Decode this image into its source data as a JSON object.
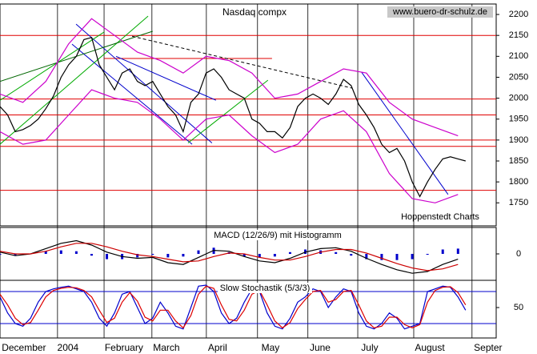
{
  "chart_data": [
    {
      "type": "line",
      "title": "Nasdaq compx",
      "source": "www.buero-dr-schulz.de",
      "credit": "Hoppenstedt Charts",
      "xlim": [
        0,
        195
      ],
      "ylim": [
        1695,
        2225
      ],
      "yticks": [
        1750,
        1800,
        1850,
        1900,
        1950,
        2000,
        2050,
        2100,
        2150,
        2200
      ],
      "series": [
        {
          "name": "Close",
          "color": "#000000",
          "x": [
            0,
            3,
            6,
            9,
            12,
            15,
            18,
            21,
            24,
            27,
            30,
            33,
            36,
            39,
            42,
            45,
            48,
            51,
            54,
            57,
            60,
            63,
            66,
            69,
            72,
            75,
            78,
            81,
            84,
            87,
            90,
            93,
            96,
            99,
            102,
            105,
            108,
            111,
            114,
            117,
            120,
            123,
            126,
            129,
            132,
            135,
            138,
            141,
            144,
            147,
            150,
            153,
            156,
            159,
            162,
            165,
            168,
            171,
            174,
            177,
            180,
            183
          ],
          "values": [
            1980,
            1960,
            1920,
            1925,
            1935,
            1950,
            1975,
            2005,
            2050,
            2080,
            2100,
            2140,
            2145,
            2080,
            2050,
            2020,
            2060,
            2070,
            2040,
            2030,
            2040,
            2010,
            1980,
            1960,
            1920,
            1990,
            2010,
            2060,
            2070,
            2050,
            2020,
            2010,
            2000,
            1950,
            1940,
            1920,
            1920,
            1905,
            1930,
            1980,
            2000,
            2010,
            2000,
            1985,
            2010,
            2045,
            2030,
            1985,
            1960,
            1930,
            1890,
            1870,
            1880,
            1850,
            1800,
            1765,
            1800,
            1830,
            1855,
            1860,
            1855,
            1850
          ]
        },
        {
          "name": "Upper band",
          "color": "#cc00cc",
          "x": [
            0,
            9,
            18,
            27,
            36,
            45,
            54,
            63,
            72,
            81,
            90,
            99,
            108,
            117,
            126,
            135,
            144,
            153,
            162,
            171,
            180
          ],
          "values": [
            2010,
            1990,
            2040,
            2130,
            2190,
            2150,
            2110,
            2090,
            2060,
            2100,
            2090,
            2060,
            2000,
            2010,
            2040,
            2070,
            2060,
            1990,
            1950,
            1930,
            1910
          ]
        },
        {
          "name": "Lower band",
          "color": "#cc00cc",
          "x": [
            0,
            9,
            18,
            27,
            36,
            45,
            54,
            63,
            72,
            81,
            90,
            99,
            108,
            117,
            126,
            135,
            144,
            153,
            162,
            171,
            180
          ],
          "values": [
            1920,
            1890,
            1900,
            1960,
            2020,
            2000,
            1990,
            1950,
            1900,
            1950,
            1960,
            1910,
            1870,
            1890,
            1950,
            1970,
            1920,
            1820,
            1760,
            1750,
            1770
          ]
        }
      ],
      "hlines": [
        {
          "value": 2150,
          "color": "#e00000"
        },
        {
          "value": 2095,
          "color": "#e00000",
          "x": [
            40.9,
            106.9
          ]
        },
        {
          "value": 1998,
          "color": "#e00000"
        },
        {
          "value": 1960,
          "color": "#e00000"
        },
        {
          "value": 1900,
          "color": "#e00000"
        },
        {
          "value": 1885,
          "color": "#e00000"
        },
        {
          "value": 1780,
          "color": "#e00000"
        }
      ],
      "trend_lines": [
        {
          "color": "#0000cc",
          "x": [
            29.9,
            83.3
          ],
          "y": [
            2177,
            1893
          ]
        },
        {
          "color": "#0000cc",
          "x": [
            28.3,
            75.5
          ],
          "y": [
            2129,
            1890
          ]
        },
        {
          "color": "#0000cc",
          "x": [
            45.6,
            84.9
          ],
          "y": [
            2100,
            1995
          ]
        },
        {
          "color": "#0000cc",
          "x": [
            142.1,
            176.1
          ],
          "y": [
            2062,
            1770
          ]
        },
        {
          "color": "#00aa00",
          "x": [
            0,
            58.2
          ],
          "y": [
            1890,
            2196
          ]
        },
        {
          "color": "#00aa00",
          "x": [
            0,
            40.9
          ],
          "y": [
            1995,
            2158
          ]
        },
        {
          "color": "#006600",
          "x": [
            0,
            60
          ],
          "y": [
            2040,
            2160
          ]
        },
        {
          "color": "#00aa00",
          "x": [
            73.9,
            105.3
          ],
          "y": [
            1893,
            2043
          ]
        },
        {
          "color": "#000000",
          "x": [
            51.9,
            138.4
          ],
          "y": [
            2148,
            2024
          ],
          "dash": true
        }
      ]
    },
    {
      "type": "macd",
      "title": "MACD (12/26/9) mit Histogramm",
      "xlim": [
        0,
        195
      ],
      "ylim": [
        -30,
        30
      ],
      "yticks": [
        0
      ],
      "series": [
        {
          "name": "Histogram",
          "color": "#0000cc",
          "kind": "bar",
          "x": [
            0,
            6,
            12,
            18,
            24,
            30,
            36,
            42,
            48,
            54,
            60,
            66,
            72,
            78,
            84,
            90,
            96,
            102,
            108,
            114,
            120,
            126,
            132,
            138,
            144,
            150,
            156,
            162,
            168,
            174,
            180
          ],
          "values": [
            -1,
            -2,
            0,
            3,
            4,
            3,
            -2,
            -6,
            -6,
            -4,
            -1,
            -4,
            -3,
            4,
            7,
            2,
            -3,
            -4,
            -3,
            2,
            5,
            4,
            2,
            -2,
            -6,
            -7,
            -7,
            -6,
            -1,
            5,
            6
          ]
        },
        {
          "name": "MACD",
          "color": "#000000",
          "x": [
            0,
            6,
            12,
            18,
            24,
            30,
            36,
            42,
            48,
            54,
            60,
            66,
            72,
            78,
            84,
            90,
            96,
            102,
            108,
            114,
            120,
            126,
            132,
            138,
            144,
            150,
            156,
            162,
            168,
            174,
            180
          ],
          "values": [
            2,
            -2,
            0,
            6,
            12,
            15,
            10,
            2,
            -3,
            -5,
            -4,
            -10,
            -12,
            -4,
            4,
            3,
            -3,
            -8,
            -10,
            -5,
            2,
            6,
            7,
            3,
            -5,
            -12,
            -18,
            -22,
            -20,
            -12,
            -6
          ]
        },
        {
          "name": "Signal",
          "color": "#cc0000",
          "x": [
            0,
            6,
            12,
            18,
            24,
            30,
            36,
            42,
            48,
            54,
            60,
            66,
            72,
            78,
            84,
            90,
            96,
            102,
            108,
            114,
            120,
            126,
            132,
            138,
            144,
            150,
            156,
            162,
            168,
            174,
            180
          ],
          "values": [
            3,
            0,
            0,
            3,
            8,
            12,
            12,
            8,
            3,
            -1,
            -3,
            -6,
            -9,
            -8,
            -3,
            1,
            0,
            -4,
            -7,
            -7,
            -3,
            2,
            5,
            5,
            1,
            -5,
            -11,
            -16,
            -19,
            -17,
            -12
          ]
        }
      ]
    },
    {
      "type": "line",
      "title": "Slow Stochastik (5/3/3)",
      "xlim": [
        0,
        195
      ],
      "ylim": [
        -7,
        101
      ],
      "yticks": [
        50
      ],
      "hlines": [
        {
          "value": 80,
          "color": "#0000cc"
        },
        {
          "value": 20,
          "color": "#0000cc"
        }
      ],
      "series": [
        {
          "name": "%K",
          "color": "#0000cc",
          "x": [
            0,
            3,
            6,
            9,
            12,
            15,
            18,
            21,
            24,
            27,
            30,
            33,
            36,
            39,
            42,
            45,
            48,
            51,
            54,
            57,
            60,
            63,
            66,
            69,
            72,
            75,
            78,
            81,
            84,
            87,
            90,
            93,
            96,
            99,
            102,
            105,
            108,
            111,
            114,
            117,
            120,
            123,
            126,
            129,
            132,
            135,
            138,
            141,
            144,
            147,
            150,
            153,
            156,
            159,
            162,
            165,
            168,
            171,
            174,
            177,
            180,
            183
          ],
          "values": [
            70,
            40,
            20,
            15,
            30,
            60,
            80,
            85,
            88,
            90,
            85,
            80,
            60,
            30,
            15,
            40,
            75,
            80,
            50,
            20,
            30,
            60,
            40,
            15,
            10,
            50,
            90,
            92,
            80,
            40,
            20,
            30,
            60,
            85,
            80,
            40,
            15,
            10,
            30,
            60,
            70,
            85,
            80,
            50,
            70,
            85,
            80,
            40,
            15,
            10,
            20,
            40,
            30,
            10,
            15,
            20,
            80,
            85,
            90,
            88,
            70,
            45
          ]
        },
        {
          "name": "%D",
          "color": "#dd0000",
          "x": [
            0,
            3,
            6,
            9,
            12,
            15,
            18,
            21,
            24,
            27,
            30,
            33,
            36,
            39,
            42,
            45,
            48,
            51,
            54,
            57,
            60,
            63,
            66,
            69,
            72,
            75,
            78,
            81,
            84,
            87,
            90,
            93,
            96,
            99,
            102,
            105,
            108,
            111,
            114,
            117,
            120,
            123,
            126,
            129,
            132,
            135,
            138,
            141,
            144,
            147,
            150,
            153,
            156,
            159,
            162,
            165,
            168,
            171,
            174,
            177,
            180,
            183
          ],
          "values": [
            75,
            55,
            30,
            18,
            22,
            45,
            70,
            82,
            86,
            88,
            87,
            82,
            70,
            45,
            22,
            30,
            60,
            78,
            62,
            32,
            25,
            45,
            45,
            25,
            12,
            35,
            75,
            90,
            86,
            55,
            28,
            25,
            45,
            75,
            82,
            55,
            25,
            12,
            22,
            48,
            65,
            80,
            82,
            60,
            65,
            80,
            82,
            55,
            25,
            12,
            15,
            32,
            32,
            18,
            12,
            18,
            60,
            82,
            88,
            89,
            78,
            55
          ]
        }
      ],
      "xgrid": [
        22.6,
        40.9,
        59.7,
        81.1,
        101.2,
        121,
        140.6,
        162.6,
        185.5
      ],
      "xticks": [
        {
          "value": 9.4,
          "label": "December"
        },
        {
          "value": 26.7,
          "label": "2004"
        },
        {
          "value": 48.7,
          "label": "February"
        },
        {
          "value": 65.4,
          "label": "March"
        },
        {
          "value": 85.5,
          "label": "April"
        },
        {
          "value": 106.3,
          "label": "May"
        },
        {
          "value": 125.8,
          "label": "June"
        },
        {
          "value": 145.3,
          "label": "July"
        },
        {
          "value": 168.9,
          "label": "August"
        },
        {
          "value": 191.8,
          "label": "Septer"
        }
      ]
    }
  ]
}
